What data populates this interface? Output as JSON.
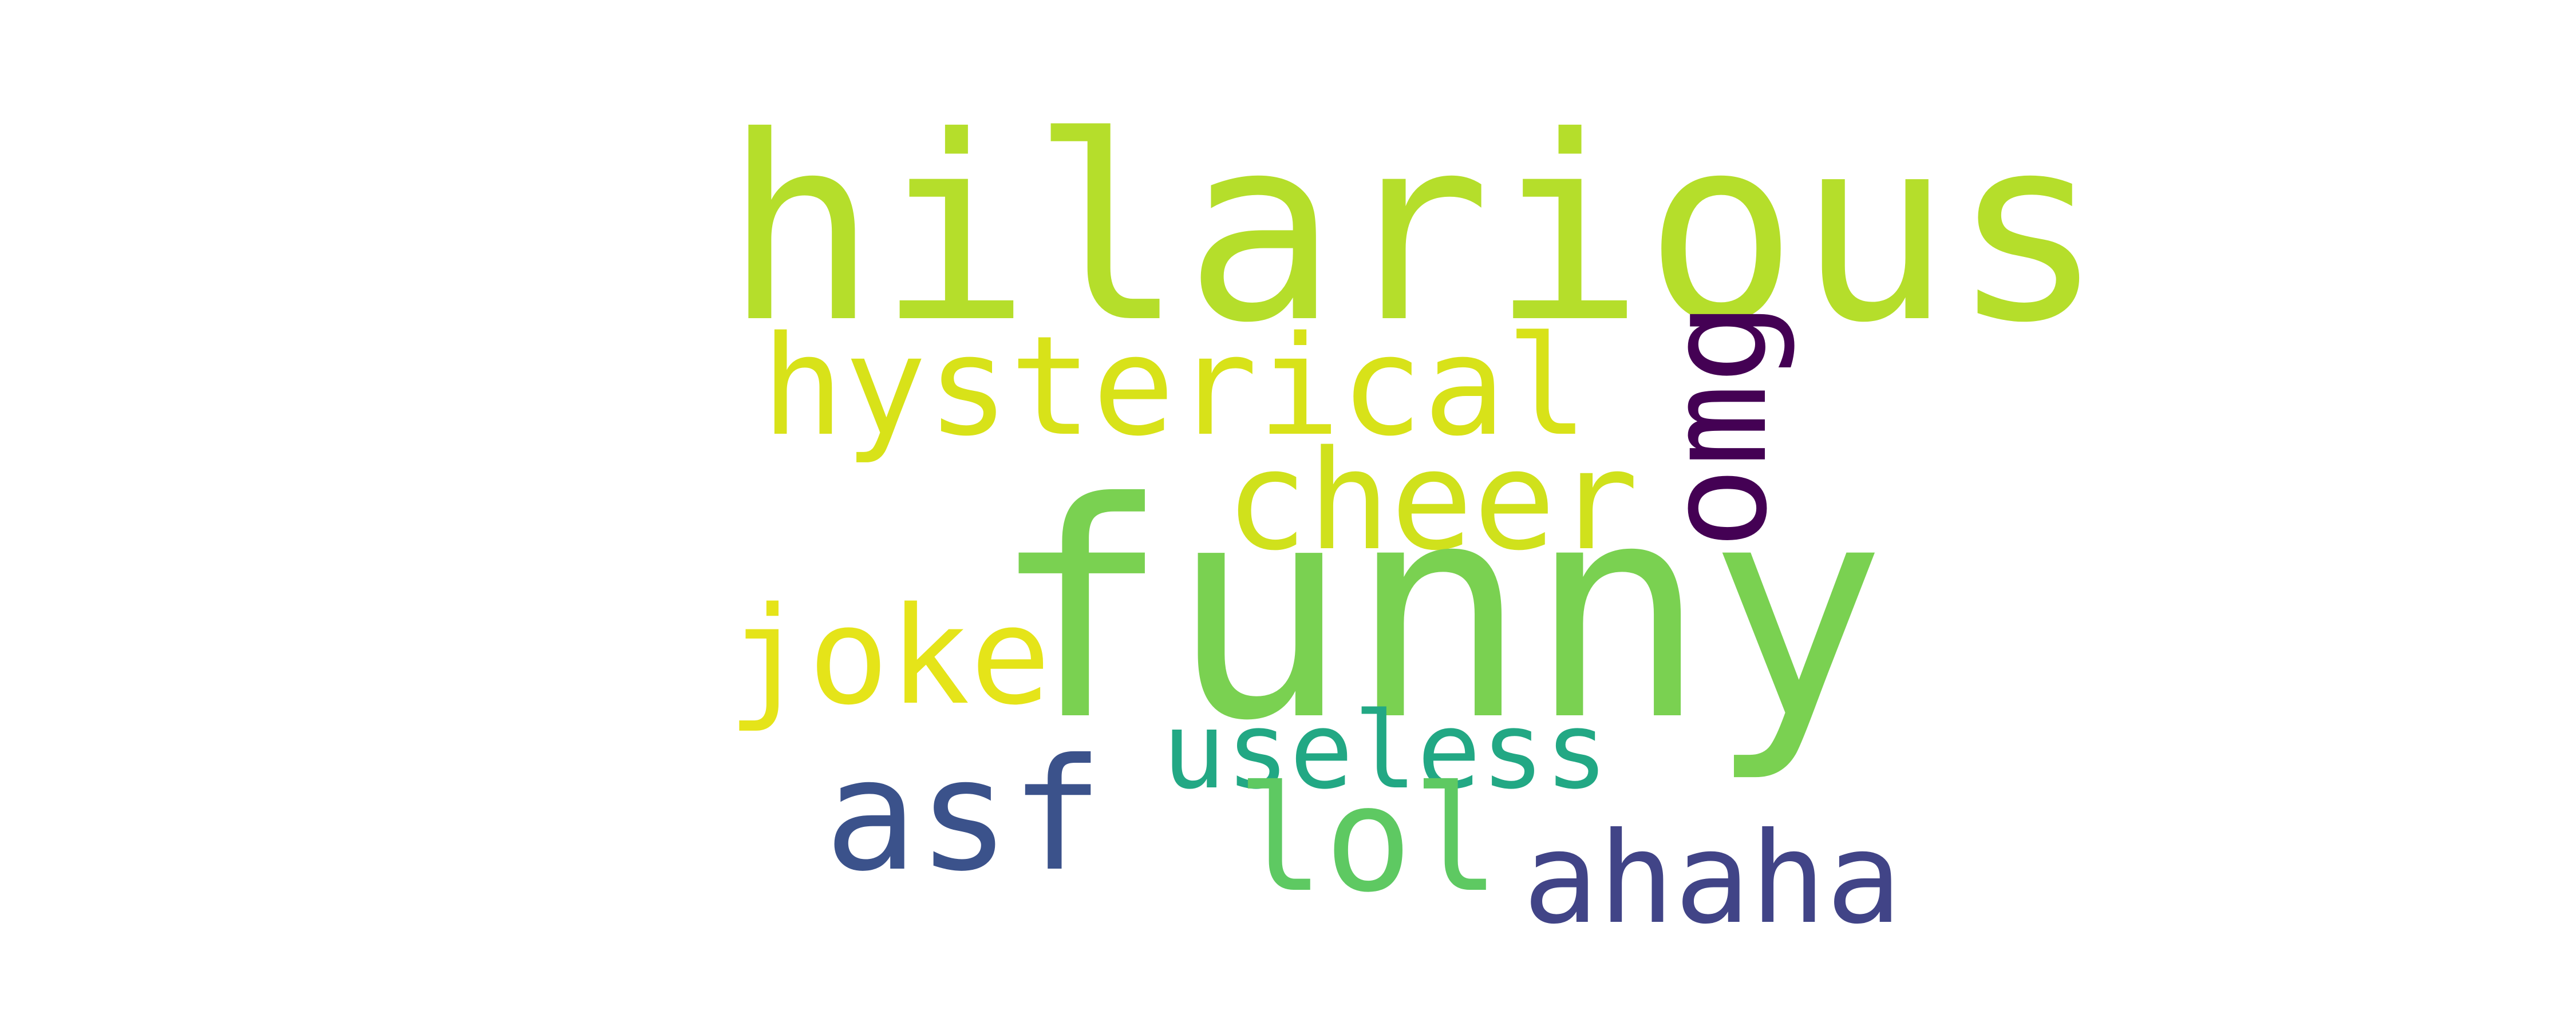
{
  "word_cloud": {
    "words": [
      {
        "text": "hilarious",
        "color": "#b5de2b"
      },
      {
        "text": "hysterical",
        "color": "#d8e219"
      },
      {
        "text": "cheer",
        "color": "#d0e11c"
      },
      {
        "text": "omg",
        "color": "#440154"
      },
      {
        "text": "funny",
        "color": "#7ad151"
      },
      {
        "text": "joke",
        "color": "#e5e419"
      },
      {
        "text": "useless",
        "color": "#22a884"
      },
      {
        "text": "asf",
        "color": "#3b528b"
      },
      {
        "text": "lol",
        "color": "#5ec962"
      },
      {
        "text": "ahaha",
        "color": "#414487"
      }
    ]
  }
}
